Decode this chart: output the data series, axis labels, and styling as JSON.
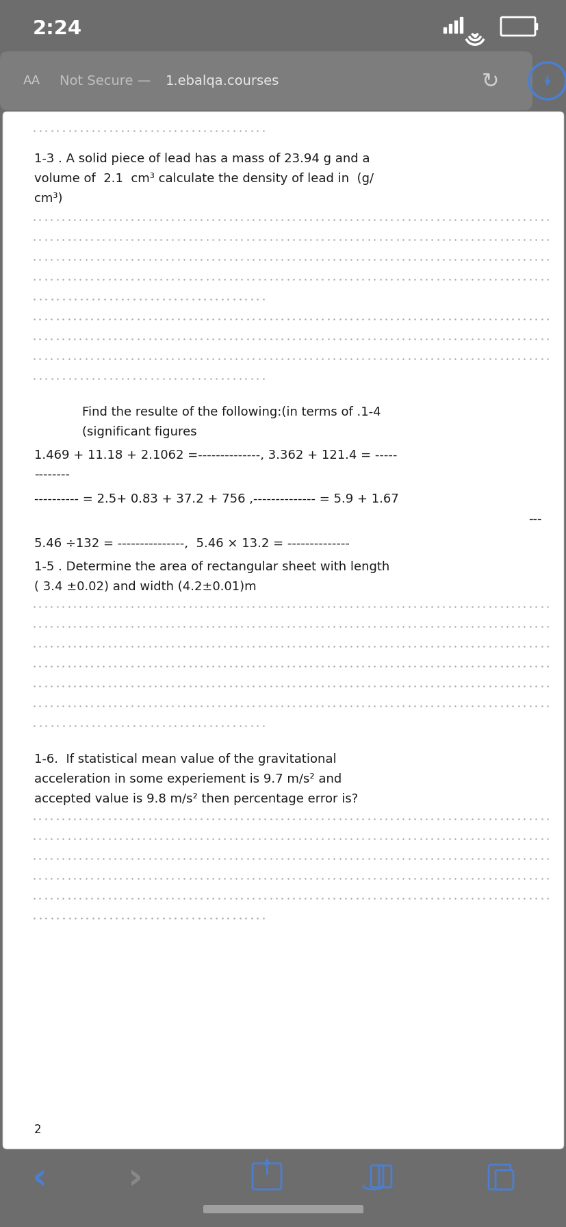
{
  "time": "2:24",
  "bg_color_top": "#6d6d6d",
  "bg_color_bottom": "#6d6d6d",
  "content_bg": "#ffffff",
  "text_color": "#1a1a1a",
  "dotted_line_color": "#aaaaaa",
  "url_bar_bg": "#7d7d7d",
  "icon_blue": "#4a7fd4",
  "icon_gray": "#888888",
  "q1_text_line1": "1-3 . A solid piece of lead has a mass of 23.94 g and a",
  "q1_text_line2": "volume of  2.1  cm³ calculate the density of lead in  (g/",
  "q1_text_line3": "cm³)",
  "q2_header_line1": "Find the resulte of the following:(in terms of .1-4",
  "q2_header_line2": "(significant figures",
  "q2_line1": "1.469 + 11.18 + 2.1062 =--------------, 3.362 + 121.4 = -----",
  "q2_line2": "--------",
  "q2_line3": "---------- = 2.5+ 0.83 + 37.2 + 756 ,-------------- = 5.9 + 1.67",
  "q2_line4": "---",
  "q2_line5": "5.46 ÷132 = ---------------,  5.46 × 13.2 = --------------",
  "q3_text_line1": "1-5 . Determine the area of rectangular sheet with length",
  "q3_text_line2": "( 3.4 ±0.02) and width (4.2±0.01)m",
  "q4_text_line1": "1-6.  If statistical mean value of the gravitational",
  "q4_text_line2": "acceleration in some experiement is 9.7 m/s² and",
  "q4_text_line3": "accepted value is 9.8 m/s² then percentage error is?",
  "page_number": "2"
}
